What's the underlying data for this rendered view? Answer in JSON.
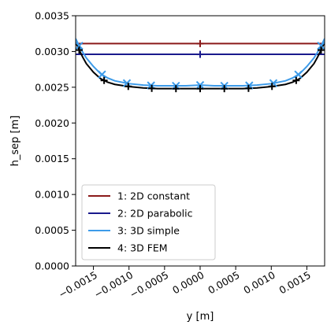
{
  "chart_data": {
    "type": "line",
    "title": "",
    "xlabel": "y [m]",
    "ylabel": "h_sep [m]",
    "xlim": [
      -0.00175,
      0.00175
    ],
    "ylim": [
      0,
      0.0035
    ],
    "grid": false,
    "legend_position": "lower-left",
    "x_ticks": [
      -0.0015,
      -0.001,
      -0.0005,
      0.0,
      0.0005,
      0.001,
      0.0015
    ],
    "x_tick_labels": [
      "−0.0015",
      "−0.0010",
      "−0.0005",
      "0.0000",
      "0.0005",
      "0.0010",
      "0.0015"
    ],
    "y_ticks": [
      0,
      0.0005,
      0.001,
      0.0015,
      0.002,
      0.0025,
      0.003,
      0.0035
    ],
    "y_tick_labels": [
      "0.0000",
      "0.0005",
      "0.0010",
      "0.0015",
      "0.0020",
      "0.0025",
      "0.0030",
      "0.0035"
    ],
    "series": [
      {
        "name": "1: 2D constant",
        "color": "#8b1a1a",
        "marker": "+",
        "x": [
          -0.00175,
          0.0,
          0.00175
        ],
        "y": [
          0.00311,
          0.00311,
          0.00311
        ],
        "marker_x": [
          0.0
        ]
      },
      {
        "name": "2: 2D parabolic",
        "color": "#1a1a8c",
        "marker": "+",
        "x": [
          -0.00175,
          0.0,
          0.00175
        ],
        "y": [
          0.00296,
          0.00296,
          0.00296
        ],
        "marker_x": [
          0.0
        ]
      },
      {
        "name": "3: 3D simple",
        "color": "#3d9be9",
        "marker": "x",
        "x": [
          -0.00175,
          -0.0017,
          -0.00165,
          -0.0016,
          -0.0015,
          -0.0014,
          -0.0013,
          -0.0012,
          -0.001,
          -0.0008,
          -0.0006,
          -0.0004,
          -0.0002,
          0.0,
          0.0002,
          0.0004,
          0.0006,
          0.0008,
          0.001,
          0.0012,
          0.0013,
          0.0014,
          0.0015,
          0.0016,
          0.00165,
          0.0017,
          0.00175
        ],
        "y": [
          0.00318,
          0.00308,
          0.00299,
          0.00291,
          0.00279,
          0.00269,
          0.00263,
          0.00259,
          0.00255,
          0.00253,
          0.00252,
          0.00252,
          0.00252,
          0.00253,
          0.00252,
          0.00252,
          0.00252,
          0.00253,
          0.00255,
          0.00259,
          0.00263,
          0.00269,
          0.00279,
          0.00291,
          0.00299,
          0.00308,
          0.00318
        ],
        "marker_x": [
          -0.0017,
          -0.00138,
          -0.00103,
          -0.00069,
          -0.00034,
          0.0,
          0.00034,
          0.00069,
          0.00103,
          0.00138,
          0.0017
        ]
      },
      {
        "name": "4: 3D FEM",
        "color": "#000000",
        "marker": "+",
        "x": [
          -0.00175,
          -0.0017,
          -0.00165,
          -0.0016,
          -0.0015,
          -0.0014,
          -0.0013,
          -0.0012,
          -0.001,
          -0.0008,
          -0.0006,
          -0.0004,
          -0.0002,
          0.0,
          0.0002,
          0.0004,
          0.0006,
          0.0008,
          0.001,
          0.0012,
          0.0013,
          0.0014,
          0.0015,
          0.0016,
          0.00165,
          0.0017,
          0.00175
        ],
        "y": [
          0.00313,
          0.00302,
          0.00292,
          0.00283,
          0.00271,
          0.00262,
          0.00257,
          0.00254,
          0.00251,
          0.00249,
          0.00248,
          0.00248,
          0.00248,
          0.00248,
          0.00248,
          0.00248,
          0.00248,
          0.00249,
          0.00251,
          0.00254,
          0.00257,
          0.00262,
          0.00271,
          0.00283,
          0.00292,
          0.00302,
          0.00313
        ],
        "marker_x": [
          -0.0017,
          -0.00135,
          -0.00101,
          -0.00068,
          -0.00034,
          0.0,
          0.00034,
          0.00068,
          0.00101,
          0.00135,
          0.0017
        ]
      }
    ]
  }
}
